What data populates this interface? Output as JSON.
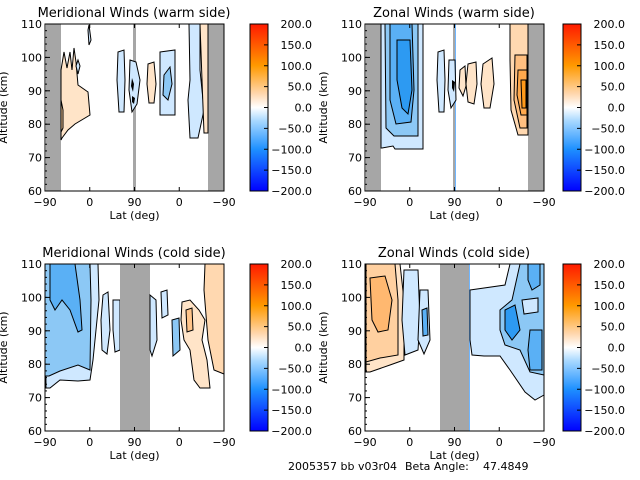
{
  "footer": {
    "id_text": "2005357 bb v03r04",
    "beta_label": "Beta Angle:",
    "beta_value": "47.4849"
  },
  "colorbar": {
    "ticks": [
      "200.0",
      "150.0",
      "100.0",
      "50.0",
      "0.0",
      "−50.0",
      "−100.0",
      "−150.0",
      "−200.0"
    ],
    "range": [
      -200,
      200
    ],
    "colors": {
      "max": "#ff1a00",
      "high": "#ff9a00",
      "mid_pos": "#ffd8b0",
      "zero": "#ffffff",
      "mid_neg": "#a8d8ff",
      "low": "#1e90ff",
      "min": "#0000ff"
    }
  },
  "chart_data": [
    {
      "type": "heatmap",
      "title": "Meridional Winds (warm side)",
      "xlabel": "Lat (deg)",
      "ylabel": "Altitude (km)",
      "xticks": [
        "−90",
        "0",
        "90",
        "0",
        "−90"
      ],
      "yticks": [
        "110",
        "100",
        "90",
        "80",
        "70",
        "60"
      ],
      "ylim": [
        60,
        110
      ],
      "value_range": [
        -200,
        200
      ],
      "features": [
        {
          "region": "left lobe lat -80..-20, 76-105 km",
          "value": 25
        },
        {
          "region": "center east lat 100..130, 82-102 km",
          "value": -25
        },
        {
          "region": "near 90 deg, 83-100 km",
          "value": -40
        },
        {
          "region": "lat 40..20 warm lobe",
          "value": 40
        },
        {
          "region": "lat 30..10, 82-103 km",
          "value": -60
        },
        {
          "region": "lat -40..-70, 75-110 km",
          "value": -25
        },
        {
          "region": "lat -65..-80, 78-110 km",
          "value": 25
        }
      ]
    },
    {
      "type": "heatmap",
      "title": "Zonal Winds (warm side)",
      "xlabel": "Lat (deg)",
      "ylabel": "Altitude (km)",
      "xticks": [
        "−90",
        "0",
        "90",
        "0",
        "−90"
      ],
      "yticks": [
        "110",
        "100",
        "90",
        "80",
        "70",
        "60"
      ],
      "ylim": [
        60,
        110
      ],
      "value_range": [
        -200,
        200
      ],
      "features": [
        {
          "region": "lat -80..30, 73-110 km",
          "value": -120
        },
        {
          "region": "lat 100..130 lobes",
          "value": 30
        },
        {
          "region": "lat -30..-80, 76-110 km",
          "value": 80
        }
      ]
    },
    {
      "type": "heatmap",
      "title": "Meridional Winds (cold side)",
      "xlabel": "Lat (deg)",
      "ylabel": "Altitude (km)",
      "xticks": [
        "−90",
        "0",
        "90",
        "0",
        "−90"
      ],
      "yticks": [
        "110",
        "100",
        "90",
        "80",
        "70",
        "60"
      ],
      "ylim": [
        60,
        110
      ],
      "value_range": [
        -200,
        200
      ],
      "features": [
        {
          "region": "lat -90..0, 73-110 km",
          "value": -90
        },
        {
          "region": "lat 20..60 lobes",
          "value": -30
        },
        {
          "region": "lat 0..-90, 73-110 km",
          "value": 50
        }
      ]
    },
    {
      "type": "heatmap",
      "title": "Zonal Winds (cold side)",
      "xlabel": "Lat (deg)",
      "ylabel": "Altitude (km)",
      "xticks": [
        "−90",
        "0",
        "90",
        "0",
        "−90"
      ],
      "yticks": [
        "110",
        "100",
        "90",
        "80",
        "70",
        "60"
      ],
      "ylim": [
        60,
        110
      ],
      "value_range": [
        -200,
        200
      ],
      "features": [
        {
          "region": "lat -90..-10, 77-110 km",
          "value": 75
        },
        {
          "region": "lat 10..50, 84-105 km",
          "value": -60
        },
        {
          "region": "lat 0..-90, 68-110 km",
          "value": -110
        }
      ]
    }
  ]
}
